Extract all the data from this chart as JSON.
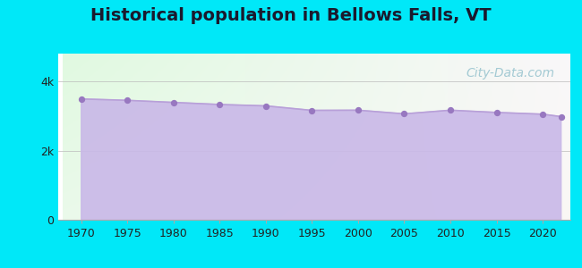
{
  "title": "Historical population in Bellows Falls, VT",
  "title_fontsize": 14,
  "title_fontweight": "bold",
  "title_color": "#1a1a2e",
  "years": [
    1970,
    1975,
    1980,
    1985,
    1990,
    1995,
    2000,
    2005,
    2010,
    2015,
    2020,
    2022
  ],
  "population": [
    3490,
    3450,
    3390,
    3330,
    3290,
    3160,
    3165,
    3060,
    3165,
    3100,
    3050,
    2980
  ],
  "line_color": "#b8a0d8",
  "fill_color": "#c9b8e8",
  "fill_alpha": 0.9,
  "marker_color": "#9878c0",
  "marker_size": 18,
  "bg_outer": "#00e8f8",
  "ylim": [
    0,
    4800
  ],
  "ytick_vals": [
    0,
    2000,
    4000
  ],
  "ytick_labels": [
    "0",
    "2k",
    "4k"
  ],
  "xticks": [
    1970,
    1975,
    1980,
    1985,
    1990,
    1995,
    2000,
    2005,
    2010,
    2015,
    2020
  ],
  "tick_fontsize": 9,
  "watermark": "City-Data.com",
  "watermark_color": "#88bbc8",
  "watermark_fontsize": 10
}
